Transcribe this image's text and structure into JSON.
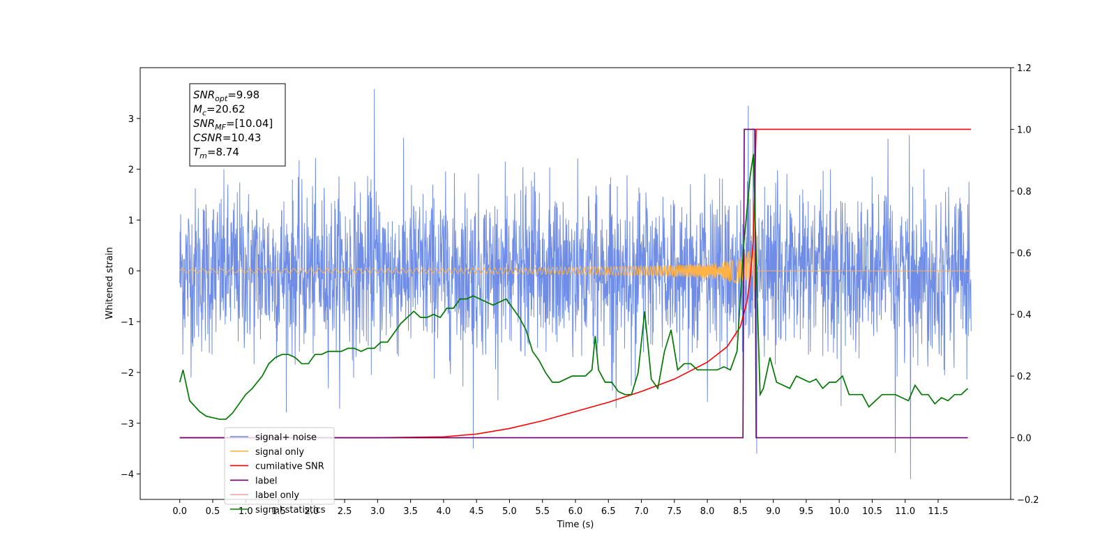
{
  "chart_data": {
    "type": "line",
    "title": "",
    "xlabel": "Time (s)",
    "ylabel": "Whitened strain",
    "xlim": [
      -0.6,
      12.6
    ],
    "ylim": [
      -4.5,
      4.0
    ],
    "y2lim": [
      -0.2,
      1.2
    ],
    "grid": false,
    "legend_position": "lower-left",
    "xticks": [
      "0.0",
      "0.5",
      "1.0",
      "1.5",
      "2.0",
      "2.5",
      "3.0",
      "3.5",
      "4.0",
      "4.5",
      "5.0",
      "5.5",
      "6.0",
      "6.5",
      "7.0",
      "7.5",
      "8.0",
      "8.5",
      "9.0",
      "9.5",
      "10.0",
      "10.5",
      "11.0",
      "11.5"
    ],
    "yticks": [
      "−4",
      "−3",
      "−2",
      "−1",
      "0",
      "1",
      "2",
      "3"
    ],
    "y2ticks": [
      "−0.2",
      "0.0",
      "0.2",
      "0.4",
      "0.6",
      "0.8",
      "1.0",
      "1.2"
    ],
    "info_box": [
      {
        "sym": "SNR",
        "sub": "opt",
        "value": "=9.98"
      },
      {
        "sym": "M",
        "sub": "c",
        "value": "=20.62"
      },
      {
        "sym": "SNR",
        "sub": "MF",
        "value": "=[10.04]"
      },
      {
        "sym": "CSNR",
        "sub": "",
        "value": "=10.43"
      },
      {
        "sym": "T",
        "sub": "m",
        "value": "=8.74"
      }
    ],
    "series": [
      {
        "name": "signal+ noise",
        "axis": "left",
        "color": "#6f8de6",
        "description": "whitened noise, band roughly -2 to 2, peaks near 3.5",
        "x_range": [
          0.0,
          12.0
        ],
        "amplitude_std": 0.8,
        "notable_peaks": [
          [
            2.95,
            3.58
          ],
          [
            4.45,
            -3.5
          ],
          [
            8.62,
            3.25
          ],
          [
            8.75,
            -3.6
          ],
          [
            10.85,
            -3.58
          ],
          [
            11.08,
            -4.1
          ]
        ]
      },
      {
        "name": "signal only",
        "axis": "left",
        "color": "#ffb347",
        "description": "chirp growing in amplitude until merger",
        "x_range": [
          0.0,
          12.0
        ],
        "merger_time": 8.74,
        "peak_amplitude": 1.1
      },
      {
        "name": "cumilative SNR",
        "axis": "right",
        "color": "#ff0000",
        "x": [
          0.0,
          3.0,
          4.0,
          4.5,
          5.0,
          5.5,
          6.0,
          6.5,
          7.0,
          7.5,
          8.0,
          8.3,
          8.5,
          8.6,
          8.65,
          8.7,
          8.74,
          8.8,
          12.0
        ],
        "values": [
          0.0,
          0.0,
          0.003,
          0.012,
          0.03,
          0.055,
          0.085,
          0.115,
          0.15,
          0.19,
          0.245,
          0.295,
          0.36,
          0.44,
          0.52,
          0.65,
          1.0,
          1.0,
          1.0
        ]
      },
      {
        "name": "label",
        "axis": "right",
        "color": "#6a006a",
        "x": [
          0.0,
          8.54,
          8.56,
          8.72,
          8.74,
          11.95
        ],
        "values": [
          0.0,
          0.0,
          1.0,
          1.0,
          0.0,
          0.0
        ]
      },
      {
        "name": "label only",
        "axis": "right",
        "color": "#f0a8a8",
        "x": [
          8.56,
          8.72
        ],
        "values": [
          1.0,
          1.0
        ]
      },
      {
        "name": "signal statistics",
        "axis": "right",
        "color": "#007800",
        "x": [
          0.0,
          0.05,
          0.15,
          0.3,
          0.4,
          0.5,
          0.6,
          0.7,
          0.8,
          0.9,
          1.0,
          1.1,
          1.25,
          1.35,
          1.45,
          1.55,
          1.65,
          1.75,
          1.85,
          1.95,
          2.05,
          2.15,
          2.25,
          2.35,
          2.45,
          2.55,
          2.65,
          2.75,
          2.85,
          2.95,
          3.05,
          3.15,
          3.25,
          3.35,
          3.45,
          3.55,
          3.65,
          3.75,
          3.85,
          3.95,
          4.05,
          4.15,
          4.25,
          4.35,
          4.45,
          4.55,
          4.65,
          4.75,
          4.85,
          4.95,
          5.05,
          5.15,
          5.25,
          5.35,
          5.45,
          5.55,
          5.65,
          5.75,
          5.85,
          5.95,
          6.05,
          6.15,
          6.25,
          6.3,
          6.35,
          6.45,
          6.55,
          6.65,
          6.75,
          6.85,
          6.95,
          7.05,
          7.15,
          7.25,
          7.35,
          7.45,
          7.55,
          7.65,
          7.75,
          7.85,
          7.95,
          8.05,
          8.15,
          8.25,
          8.35,
          8.45,
          8.55,
          8.65,
          8.7,
          8.75,
          8.8,
          8.85,
          8.95,
          9.05,
          9.15,
          9.25,
          9.35,
          9.45,
          9.55,
          9.65,
          9.75,
          9.85,
          9.95,
          10.05,
          10.15,
          10.25,
          10.35,
          10.45,
          10.55,
          10.65,
          10.75,
          10.85,
          10.95,
          11.05,
          11.15,
          11.25,
          11.35,
          11.45,
          11.55,
          11.65,
          11.75,
          11.85,
          11.95
        ],
        "values": [
          0.18,
          0.22,
          0.12,
          0.085,
          0.07,
          0.065,
          0.06,
          0.06,
          0.08,
          0.11,
          0.14,
          0.16,
          0.2,
          0.24,
          0.26,
          0.27,
          0.27,
          0.26,
          0.24,
          0.24,
          0.27,
          0.27,
          0.28,
          0.28,
          0.28,
          0.29,
          0.29,
          0.28,
          0.29,
          0.29,
          0.31,
          0.31,
          0.34,
          0.37,
          0.39,
          0.41,
          0.39,
          0.39,
          0.4,
          0.39,
          0.42,
          0.42,
          0.45,
          0.45,
          0.46,
          0.45,
          0.44,
          0.43,
          0.44,
          0.45,
          0.42,
          0.39,
          0.35,
          0.28,
          0.25,
          0.21,
          0.18,
          0.18,
          0.19,
          0.2,
          0.2,
          0.2,
          0.22,
          0.33,
          0.22,
          0.18,
          0.18,
          0.15,
          0.14,
          0.14,
          0.21,
          0.41,
          0.19,
          0.16,
          0.28,
          0.35,
          0.22,
          0.24,
          0.24,
          0.22,
          0.22,
          0.22,
          0.22,
          0.23,
          0.22,
          0.28,
          0.62,
          0.85,
          0.92,
          0.5,
          0.14,
          0.16,
          0.26,
          0.18,
          0.17,
          0.16,
          0.2,
          0.19,
          0.18,
          0.19,
          0.16,
          0.18,
          0.18,
          0.2,
          0.14,
          0.14,
          0.14,
          0.1,
          0.12,
          0.14,
          0.14,
          0.14,
          0.13,
          0.12,
          0.17,
          0.14,
          0.14,
          0.11,
          0.13,
          0.12,
          0.14,
          0.14,
          0.16
        ]
      }
    ]
  },
  "legend": [
    {
      "label": "signal+ noise",
      "color": "#6f8de6"
    },
    {
      "label": "signal only",
      "color": "#ffb347"
    },
    {
      "label": "cumilative SNR",
      "color": "#ff0000"
    },
    {
      "label": "label",
      "color": "#6a006a"
    },
    {
      "label": "label only",
      "color": "#f0a8a8"
    },
    {
      "label": "signal statistics",
      "color": "#007800"
    }
  ]
}
